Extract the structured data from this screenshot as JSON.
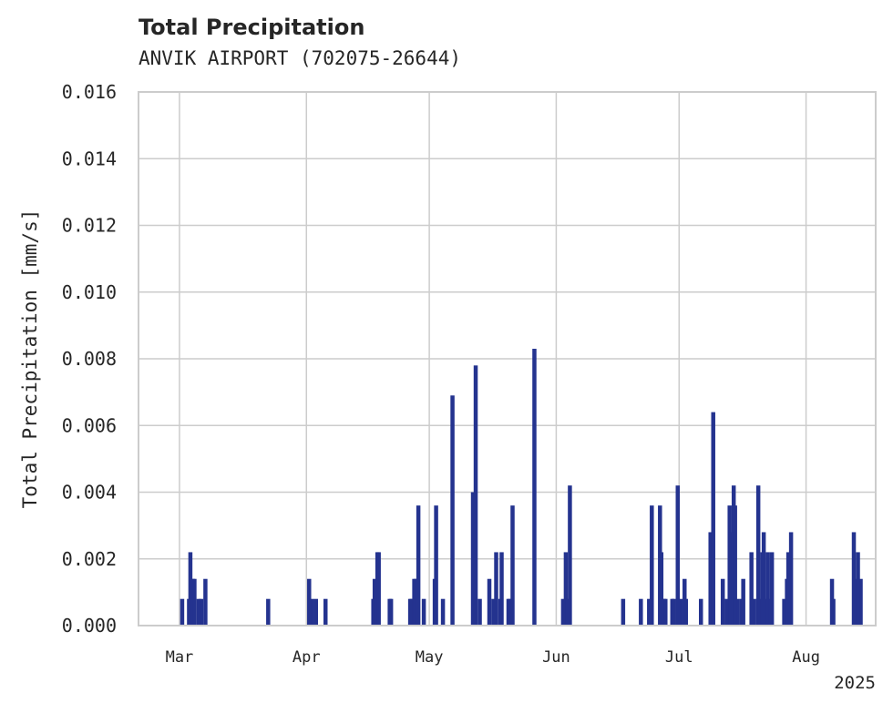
{
  "chart_data": {
    "type": "bar",
    "title": "Total Precipitation",
    "subtitle": "ANVIK AIRPORT (702075-26644)",
    "ylabel": "Total Precipitation [mm/s]",
    "xlabel": "",
    "ylim": [
      0,
      0.016
    ],
    "xlim": [
      "2025-02-19",
      "2025-08-18"
    ],
    "yticks": [
      "0.000",
      "0.002",
      "0.004",
      "0.006",
      "0.008",
      "0.010",
      "0.012",
      "0.014",
      "0.016"
    ],
    "xticks": [
      {
        "date": "2025-03-01",
        "label": "Mar"
      },
      {
        "date": "2025-04-01",
        "label": "Apr"
      },
      {
        "date": "2025-05-01",
        "label": "May"
      },
      {
        "date": "2025-06-01",
        "label": "Jun"
      },
      {
        "date": "2025-07-01",
        "label": "Jul"
      },
      {
        "date": "2025-08-01",
        "label": "Aug"
      }
    ],
    "year_label": "2025",
    "grid": true,
    "legend": "none",
    "color": "#24338f",
    "series": [
      {
        "x": [
          "2025-03-02",
          "2025-03-03",
          "2025-03-04",
          "2025-03-04",
          "2025-03-05",
          "2025-03-06",
          "2025-03-06",
          "2025-03-07",
          "2025-03-23",
          "2025-04-02",
          "2025-04-02",
          "2025-04-03",
          "2025-04-06",
          "2025-04-17",
          "2025-04-18",
          "2025-04-18",
          "2025-04-19",
          "2025-04-21",
          "2025-04-22",
          "2025-04-26",
          "2025-04-27",
          "2025-04-27",
          "2025-04-28",
          "2025-04-28",
          "2025-04-30",
          "2025-05-02",
          "2025-05-03",
          "2025-05-04",
          "2025-05-07",
          "2025-05-12",
          "2025-05-12",
          "2025-05-13",
          "2025-05-16",
          "2025-05-17",
          "2025-05-17",
          "2025-05-18",
          "2025-05-19",
          "2025-05-20",
          "2025-05-21",
          "2025-05-21",
          "2025-05-27",
          "2025-06-03",
          "2025-06-03",
          "2025-06-04",
          "2025-06-04",
          "2025-06-17",
          "2025-06-22",
          "2025-06-24",
          "2025-06-24",
          "2025-06-26",
          "2025-06-27",
          "2025-06-27",
          "2025-06-28",
          "2025-06-29",
          "2025-06-30",
          "2025-07-01",
          "2025-07-01",
          "2025-07-02",
          "2025-07-03",
          "2025-07-06",
          "2025-07-09",
          "2025-07-09",
          "2025-07-12",
          "2025-07-13",
          "2025-07-13",
          "2025-07-14",
          "2025-07-14",
          "2025-07-15",
          "2025-07-15",
          "2025-07-16",
          "2025-07-17",
          "2025-07-19",
          "2025-07-19",
          "2025-07-20",
          "2025-07-21",
          "2025-07-21",
          "2025-07-22",
          "2025-07-22",
          "2025-07-23",
          "2025-07-23",
          "2025-07-24",
          "2025-07-27",
          "2025-07-27",
          "2025-07-28",
          "2025-07-28",
          "2025-08-07",
          "2025-08-08",
          "2025-08-13",
          "2025-08-13",
          "2025-08-14",
          "2025-08-14"
        ],
        "y": [
          0.0008,
          0.0008,
          0.0022,
          0.0014,
          0.0014,
          0.0008,
          0.0008,
          0.0014,
          0.0008,
          0.0008,
          0.0014,
          0.0008,
          0.0008,
          0.0008,
          0.0014,
          0.0022,
          0.0022,
          0.0008,
          0.0008,
          0.0008,
          0.0008,
          0.0014,
          0.0014,
          0.0036,
          0.0008,
          0.0014,
          0.0036,
          0.0008,
          0.0069,
          0.0078,
          0.004,
          0.0008,
          0.0014,
          0.0022,
          0.0008,
          0.0008,
          0.0022,
          0.0008,
          0.0008,
          0.0036,
          0.0083,
          0.0022,
          0.0008,
          0.0042,
          0.0008,
          0.0008,
          0.0008,
          0.0036,
          0.0008,
          0.0036,
          0.0022,
          0.0008,
          0.0008,
          0.0008,
          0.0008,
          0.0008,
          0.0042,
          0.0014,
          0.0008,
          0.0008,
          0.0028,
          0.0064,
          0.0014,
          0.0036,
          0.0008,
          0.0042,
          0.0028,
          0.0008,
          0.0036,
          0.0008,
          0.0014,
          0.0008,
          0.0022,
          0.0042,
          0.0008,
          0.0022,
          0.0028,
          0.0008,
          0.0022,
          0.0008,
          0.0022,
          0.0014,
          0.0008,
          0.0028,
          0.0022,
          0.0014,
          0.0008,
          0.0014,
          0.0028,
          0.0014,
          0.0022
        ]
      }
    ]
  }
}
